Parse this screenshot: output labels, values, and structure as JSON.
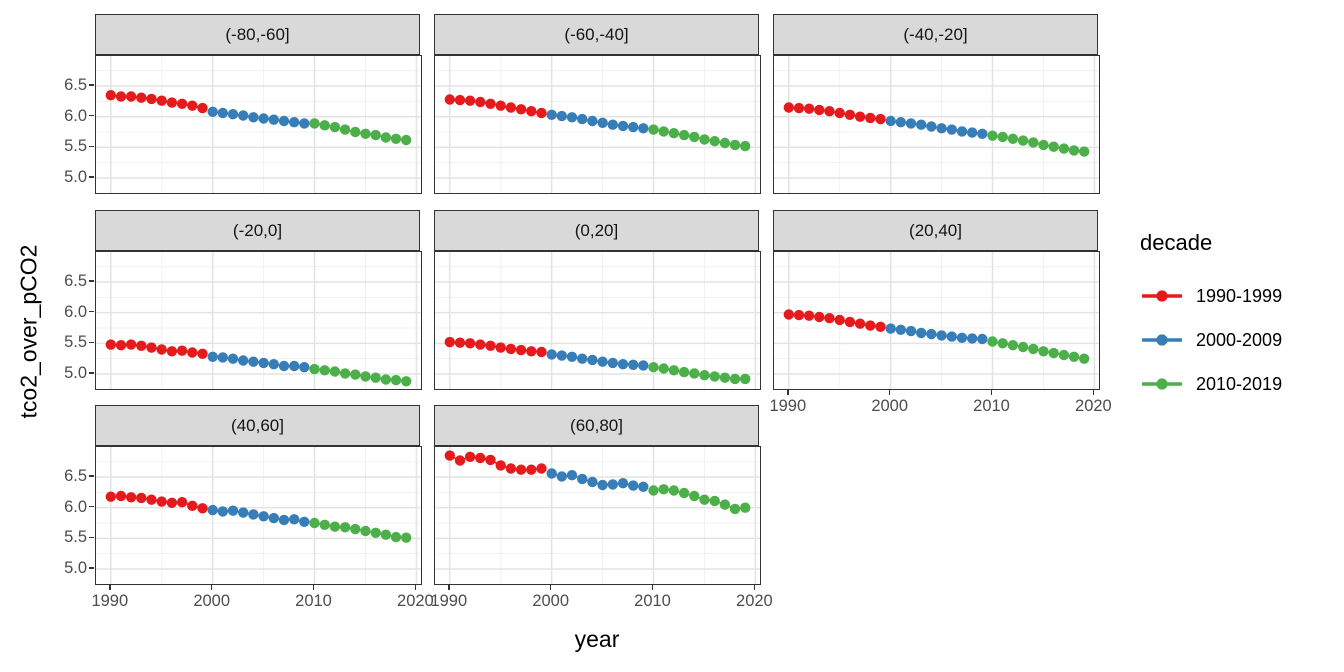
{
  "titles": {
    "x": "year",
    "y": "tco2_over_pCO2"
  },
  "legend": {
    "title": "decade",
    "entries": [
      {
        "label": "1990-1999",
        "color": "#E41A1C"
      },
      {
        "label": "2000-2009",
        "color": "#377EB8"
      },
      {
        "label": "2010-2019",
        "color": "#4DAF4A"
      }
    ]
  },
  "style": {
    "strip_bg": "#d9d9d9",
    "panel_border": "#333333",
    "grid_major": "#e3e3e3",
    "grid_minor": "#f1f1f1",
    "tick_text": "#4d4d4d",
    "tick_mark": "#333333"
  },
  "chart_data": {
    "type": "scatter",
    "title": "",
    "xlabel": "year",
    "ylabel": "tco2_over_pCO2",
    "facet_variable": "latitude band",
    "legend_title": "decade",
    "legend_position": "right",
    "grid": true,
    "x": [
      1990,
      1991,
      1992,
      1993,
      1994,
      1995,
      1996,
      1997,
      1998,
      1999,
      2000,
      2001,
      2002,
      2003,
      2004,
      2005,
      2006,
      2007,
      2008,
      2009,
      2010,
      2011,
      2012,
      2013,
      2014,
      2015,
      2016,
      2017,
      2018,
      2019
    ],
    "xlim": [
      1988.55,
      2020.45
    ],
    "ylim": [
      4.755,
      6.99
    ],
    "x_ticks": [
      "1990",
      "2000",
      "2010",
      "2020"
    ],
    "x_tick_values": [
      1990,
      2000,
      2010,
      2020
    ],
    "x_minor_gridlines": [
      1995,
      2005,
      2015
    ],
    "y_ticks": [
      "6.5",
      "6.0",
      "5.5",
      "5.0"
    ],
    "y_tick_values": [
      6.5,
      6.0,
      5.5,
      5.0
    ],
    "y_minor_gridlines": [
      6.75,
      6.25,
      5.75,
      5.25
    ],
    "decades": [
      {
        "name": "1990-1999",
        "start_year": 1990,
        "end_year": 1999,
        "color": "#E41A1C"
      },
      {
        "name": "2000-2009",
        "start_year": 2000,
        "end_year": 2009,
        "color": "#377EB8"
      },
      {
        "name": "2010-2019",
        "start_year": 2010,
        "end_year": 2019,
        "color": "#4DAF4A"
      }
    ],
    "facets": [
      {
        "label": "(-80,-60]",
        "values": [
          6.35,
          6.33,
          6.33,
          6.31,
          6.29,
          6.26,
          6.23,
          6.21,
          6.18,
          6.14,
          6.08,
          6.06,
          6.04,
          6.02,
          5.99,
          5.97,
          5.95,
          5.93,
          5.91,
          5.89,
          5.89,
          5.86,
          5.83,
          5.79,
          5.75,
          5.72,
          5.7,
          5.66,
          5.64,
          5.62
        ]
      },
      {
        "label": "(-60,-40]",
        "values": [
          6.28,
          6.27,
          6.26,
          6.24,
          6.21,
          6.18,
          6.15,
          6.12,
          6.09,
          6.06,
          6.03,
          6.01,
          5.99,
          5.96,
          5.93,
          5.9,
          5.87,
          5.85,
          5.83,
          5.81,
          5.79,
          5.76,
          5.73,
          5.7,
          5.67,
          5.63,
          5.6,
          5.57,
          5.54,
          5.52
        ]
      },
      {
        "label": "(-40,-20]",
        "values": [
          6.15,
          6.14,
          6.13,
          6.11,
          6.09,
          6.06,
          6.03,
          6.0,
          5.98,
          5.96,
          5.93,
          5.91,
          5.89,
          5.87,
          5.84,
          5.81,
          5.79,
          5.76,
          5.74,
          5.72,
          5.69,
          5.67,
          5.64,
          5.61,
          5.58,
          5.54,
          5.51,
          5.48,
          5.45,
          5.43
        ]
      },
      {
        "label": "(-20,0]",
        "values": [
          5.48,
          5.47,
          5.48,
          5.46,
          5.43,
          5.4,
          5.37,
          5.38,
          5.35,
          5.33,
          5.28,
          5.27,
          5.25,
          5.22,
          5.2,
          5.18,
          5.16,
          5.13,
          5.13,
          5.11,
          5.08,
          5.06,
          5.04,
          5.01,
          4.99,
          4.96,
          4.94,
          4.91,
          4.9,
          4.88
        ]
      },
      {
        "label": "(0,20]",
        "values": [
          5.52,
          5.51,
          5.5,
          5.48,
          5.46,
          5.43,
          5.41,
          5.39,
          5.37,
          5.36,
          5.32,
          5.3,
          5.28,
          5.25,
          5.23,
          5.2,
          5.18,
          5.16,
          5.15,
          5.14,
          5.11,
          5.09,
          5.06,
          5.03,
          5.01,
          4.98,
          4.96,
          4.94,
          4.92,
          4.92
        ]
      },
      {
        "label": "(20,40]",
        "values": [
          5.97,
          5.96,
          5.95,
          5.93,
          5.91,
          5.88,
          5.85,
          5.82,
          5.79,
          5.77,
          5.74,
          5.72,
          5.7,
          5.67,
          5.65,
          5.63,
          5.61,
          5.59,
          5.58,
          5.57,
          5.53,
          5.5,
          5.47,
          5.44,
          5.41,
          5.37,
          5.34,
          5.31,
          5.28,
          5.25
        ]
      },
      {
        "label": "(40,60]",
        "values": [
          6.18,
          6.19,
          6.17,
          6.16,
          6.13,
          6.1,
          6.08,
          6.09,
          6.03,
          5.99,
          5.96,
          5.94,
          5.95,
          5.92,
          5.89,
          5.86,
          5.83,
          5.8,
          5.81,
          5.77,
          5.75,
          5.72,
          5.69,
          5.68,
          5.65,
          5.62,
          5.59,
          5.56,
          5.52,
          5.51
        ]
      },
      {
        "label": "(60,80]",
        "values": [
          6.85,
          6.77,
          6.83,
          6.81,
          6.78,
          6.69,
          6.64,
          6.62,
          6.62,
          6.64,
          6.56,
          6.51,
          6.53,
          6.47,
          6.42,
          6.37,
          6.38,
          6.4,
          6.36,
          6.34,
          6.28,
          6.3,
          6.28,
          6.24,
          6.19,
          6.13,
          6.11,
          6.05,
          5.98,
          6.0
        ]
      }
    ]
  }
}
